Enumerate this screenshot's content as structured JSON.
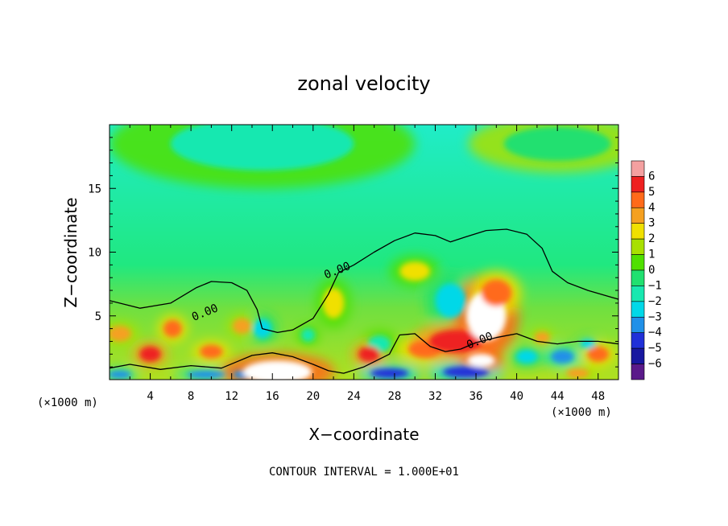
{
  "chart_data": {
    "type": "heatmap",
    "title": "zonal velocity",
    "xlabel": "X−coordinate",
    "ylabel": "Z−coordinate",
    "x_unit": "(×1000 m)",
    "x_unit_right": "(×1000 m)",
    "xlim": [
      0,
      50
    ],
    "ylim": [
      0,
      20
    ],
    "xticks": [
      4,
      8,
      12,
      16,
      20,
      24,
      28,
      32,
      36,
      40,
      44,
      48
    ],
    "yticks": [
      5,
      10,
      15
    ],
    "colorbar": {
      "levels": [
        6,
        5,
        4,
        3,
        2,
        1,
        0,
        -1,
        -2,
        -3,
        -4,
        -5,
        -6
      ],
      "level_labels": [
        "6",
        "5",
        "4",
        "3",
        "2",
        "1",
        "0",
        "−1",
        "−2",
        "−3",
        "−4",
        "−5",
        "−6"
      ],
      "colors": [
        "#f4a0a0",
        "#ee2020",
        "#ff6a1a",
        "#f5a020",
        "#f0e000",
        "#a8e000",
        "#50e000",
        "#20e070",
        "#18e8b0",
        "#00d8e8",
        "#2090e8",
        "#2030d8",
        "#1818a0",
        "#5a1a8a"
      ]
    },
    "contour_labels": [
      {
        "text": "0.00",
        "x": 9.5,
        "z": 5.0
      },
      {
        "text": "0.00",
        "x": 22.5,
        "z": 8.3
      },
      {
        "text": "0.00",
        "x": 36.5,
        "z": 2.8
      }
    ],
    "contour_zero_line": [
      [
        0,
        6.2
      ],
      [
        3,
        5.6
      ],
      [
        6,
        6.0
      ],
      [
        8.5,
        7.2
      ],
      [
        10,
        7.7
      ],
      [
        12,
        7.6
      ],
      [
        13.5,
        7.0
      ],
      [
        14.5,
        5.5
      ],
      [
        15,
        4.0
      ],
      [
        16.5,
        3.7
      ],
      [
        18,
        3.9
      ],
      [
        20,
        4.8
      ],
      [
        21.5,
        6.7
      ],
      [
        22.5,
        8.4
      ],
      [
        24,
        9.0
      ],
      [
        26,
        10.0
      ],
      [
        28,
        10.9
      ],
      [
        30,
        11.5
      ],
      [
        32,
        11.3
      ],
      [
        33.5,
        10.8
      ],
      [
        35,
        11.2
      ],
      [
        37,
        11.7
      ],
      [
        39,
        11.8
      ],
      [
        41,
        11.4
      ],
      [
        42.5,
        10.3
      ],
      [
        43.5,
        8.5
      ],
      [
        45,
        7.6
      ],
      [
        47,
        7.0
      ],
      [
        50,
        6.3
      ]
    ],
    "contour_zero_line_low": [
      [
        0,
        0.9
      ],
      [
        2,
        1.2
      ],
      [
        5,
        0.8
      ],
      [
        8,
        1.1
      ],
      [
        11,
        0.9
      ],
      [
        12.5,
        1.4
      ],
      [
        14,
        1.9
      ],
      [
        16,
        2.1
      ],
      [
        18,
        1.8
      ],
      [
        20,
        1.2
      ],
      [
        21.5,
        0.7
      ],
      [
        23,
        0.5
      ],
      [
        25,
        1.0
      ],
      [
        27.5,
        2.0
      ],
      [
        28.5,
        3.5
      ],
      [
        30,
        3.6
      ],
      [
        31.5,
        2.6
      ],
      [
        33,
        2.2
      ],
      [
        34.5,
        2.4
      ],
      [
        36,
        2.9
      ],
      [
        38,
        3.3
      ],
      [
        40,
        3.6
      ],
      [
        42,
        3.0
      ],
      [
        44,
        2.8
      ],
      [
        46,
        3.0
      ],
      [
        48,
        3.0
      ],
      [
        50,
        2.8
      ]
    ],
    "positive_cells": [
      {
        "x": 4.0,
        "z": 2.0,
        "rx": 1.4,
        "rz": 0.8,
        "v": 5
      },
      {
        "x": 6.2,
        "z": 4.0,
        "rx": 1.2,
        "rz": 0.9,
        "v": 4
      },
      {
        "x": 10.0,
        "z": 2.2,
        "rx": 1.5,
        "rz": 0.7,
        "v": 4
      },
      {
        "x": 1.0,
        "z": 3.6,
        "rx": 1.5,
        "rz": 0.8,
        "v": 3
      },
      {
        "x": 13.0,
        "z": 4.2,
        "rx": 1.2,
        "rz": 0.8,
        "v": 3
      },
      {
        "x": 16.5,
        "z": 0.6,
        "rx": 4.5,
        "rz": 1.2,
        "v": 6
      },
      {
        "x": 25.5,
        "z": 2.0,
        "rx": 1.4,
        "rz": 0.8,
        "v": 5
      },
      {
        "x": 31.0,
        "z": 2.4,
        "rx": 2.2,
        "rz": 0.9,
        "v": 4
      },
      {
        "x": 34.0,
        "z": 3.0,
        "rx": 3.5,
        "rz": 1.2,
        "v": 5
      },
      {
        "x": 37.0,
        "z": 5.0,
        "rx": 2.6,
        "rz": 2.6,
        "v": 6
      },
      {
        "x": 38.0,
        "z": 6.8,
        "rx": 2.0,
        "rz": 1.4,
        "v": 4
      },
      {
        "x": 36.5,
        "z": 1.5,
        "rx": 1.8,
        "rz": 0.7,
        "v": 6
      },
      {
        "x": 42.5,
        "z": 3.3,
        "rx": 1.0,
        "rz": 0.6,
        "v": 3
      },
      {
        "x": 48.0,
        "z": 2.0,
        "rx": 1.4,
        "rz": 0.8,
        "v": 4
      },
      {
        "x": 46.0,
        "z": 0.5,
        "rx": 1.5,
        "rz": 0.5,
        "v": 3
      },
      {
        "x": 22.0,
        "z": 6.0,
        "rx": 1.4,
        "rz": 1.6,
        "v": 2
      },
      {
        "x": 30.0,
        "z": 8.5,
        "rx": 2.0,
        "rz": 1.0,
        "v": 2
      }
    ],
    "negative_cells": [
      {
        "x": 15.0,
        "z": 4.0,
        "rx": 1.2,
        "rz": 1.0,
        "v": -3
      },
      {
        "x": 19.5,
        "z": 3.5,
        "rx": 0.9,
        "rz": 0.7,
        "v": -2
      },
      {
        "x": 33.5,
        "z": 6.2,
        "rx": 2.0,
        "rz": 1.8,
        "v": -3
      },
      {
        "x": 26.5,
        "z": 2.8,
        "rx": 1.5,
        "rz": 0.9,
        "v": -2
      },
      {
        "x": 14.0,
        "z": 0.4,
        "rx": 2.5,
        "rz": 0.5,
        "v": -4
      },
      {
        "x": 27.5,
        "z": 0.5,
        "rx": 2.5,
        "rz": 0.5,
        "v": -5
      },
      {
        "x": 35.0,
        "z": 0.6,
        "rx": 3.0,
        "rz": 0.6,
        "v": -5
      },
      {
        "x": 41.0,
        "z": 1.8,
        "rx": 1.4,
        "rz": 0.7,
        "v": -3
      },
      {
        "x": 44.5,
        "z": 1.8,
        "rx": 1.5,
        "rz": 0.7,
        "v": -4
      },
      {
        "x": 47.0,
        "z": 2.8,
        "rx": 1.0,
        "rz": 0.5,
        "v": -3
      },
      {
        "x": 9.5,
        "z": 0.4,
        "rx": 2.5,
        "rz": 0.4,
        "v": -4
      },
      {
        "x": 1.0,
        "z": 0.4,
        "rx": 1.5,
        "rz": 0.4,
        "v": -4
      },
      {
        "x": 15.0,
        "z": 18.5,
        "rx": 12.0,
        "rz": 2.8,
        "v": -2
      },
      {
        "x": 44.0,
        "z": 18.5,
        "rx": 7.0,
        "rz": 1.8,
        "v": -1
      }
    ]
  },
  "footer": {
    "contour_interval": "CONTOUR INTERVAL = 1.000E+01"
  }
}
